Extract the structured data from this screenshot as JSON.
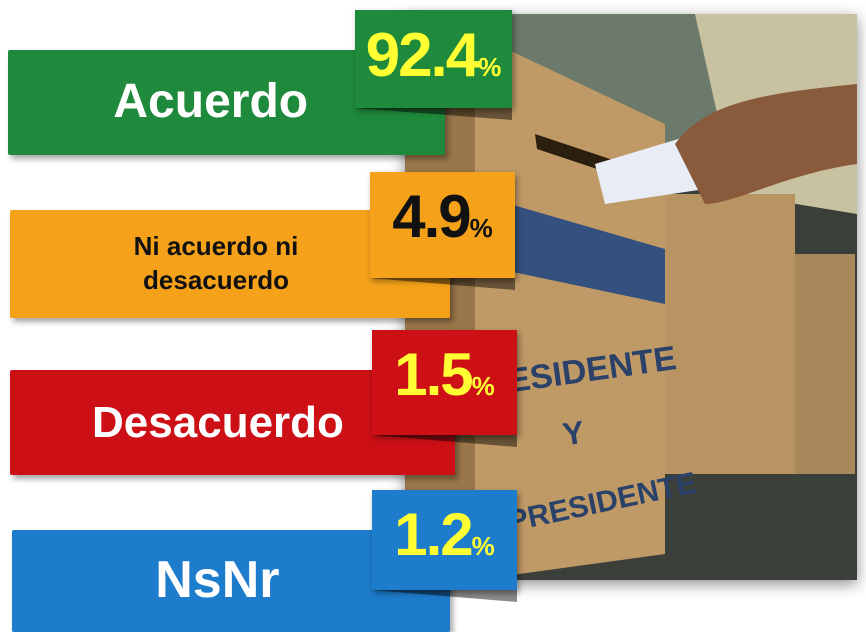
{
  "items": [
    {
      "label": "Acuerdo",
      "value": "92.4",
      "unit": "%",
      "color": "#1f8a3b",
      "label_color": "#ffffff",
      "value_color": "#ffff33"
    },
    {
      "label": "Ni acuerdo ni desacuerdo",
      "value": "4.9",
      "unit": "%",
      "color": "#f5a21a",
      "label_color": "#111111",
      "value_color": "#111111"
    },
    {
      "label": "Desacuerdo",
      "value": "1.5",
      "unit": "%",
      "color": "#cc1016",
      "label_color": "#ffffff",
      "value_color": "#ffff33"
    },
    {
      "label": "NsNr",
      "value": "1.2",
      "unit": "%",
      "color": "#1e7ccc",
      "label_color": "#ffffff",
      "value_color": "#ffff33"
    }
  ],
  "photo": {
    "box_text": [
      "PRESIDENTE",
      "Y",
      "VICEPRESIDENTE"
    ]
  }
}
